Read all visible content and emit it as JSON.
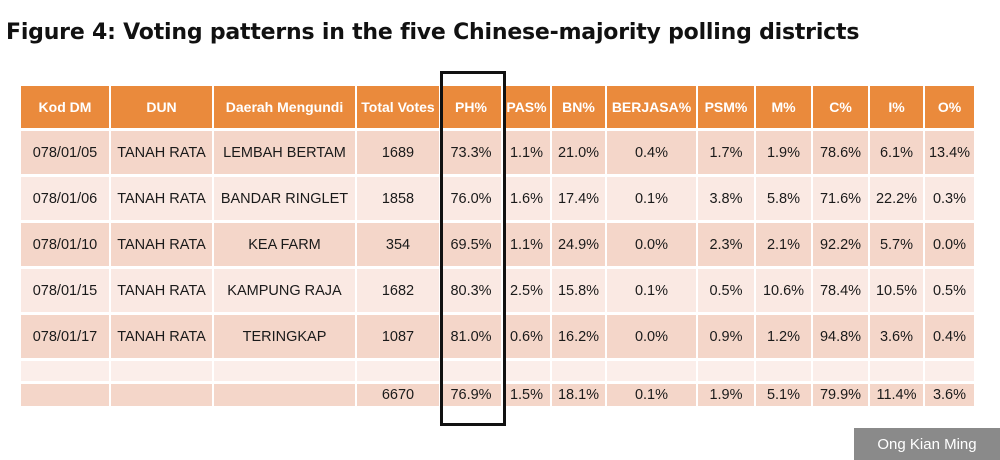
{
  "title": "Figure 4: Voting patterns in the five Chinese-majority polling districts",
  "credit": "Ong Kian Ming",
  "colors": {
    "header_bg": "#ea8a3c",
    "row_dark": "#f4d6c9",
    "row_light": "#fae9e3",
    "highlight_border": "#111111"
  },
  "table": {
    "headers": [
      "Kod DM",
      "DUN",
      "Daerah Mengundi",
      "Total Votes",
      "PH%",
      "PAS%",
      "BN%",
      "BERJASA%",
      "PSM%",
      "M%",
      "C%",
      "I%",
      "O%"
    ],
    "highlighted_column": "PH%",
    "rows": [
      [
        "078/01/05",
        "TANAH RATA",
        "LEMBAH BERTAM",
        "1689",
        "73.3%",
        "1.1%",
        "21.0%",
        "0.4%",
        "1.7%",
        "1.9%",
        "78.6%",
        "6.1%",
        "13.4%"
      ],
      [
        "078/01/06",
        "TANAH RATA",
        "BANDAR RINGLET",
        "1858",
        "76.0%",
        "1.6%",
        "17.4%",
        "0.1%",
        "3.8%",
        "5.8%",
        "71.6%",
        "22.2%",
        "0.3%"
      ],
      [
        "078/01/10",
        "TANAH RATA",
        "KEA FARM",
        "354",
        "69.5%",
        "1.1%",
        "24.9%",
        "0.0%",
        "2.3%",
        "2.1%",
        "92.2%",
        "5.7%",
        "0.0%"
      ],
      [
        "078/01/15",
        "TANAH RATA",
        "KAMPUNG RAJA",
        "1682",
        "80.3%",
        "2.5%",
        "15.8%",
        "0.1%",
        "0.5%",
        "10.6%",
        "78.4%",
        "10.5%",
        "0.5%"
      ],
      [
        "078/01/17",
        "TANAH RATA",
        "TERINGKAP",
        "1087",
        "81.0%",
        "0.6%",
        "16.2%",
        "0.0%",
        "0.9%",
        "1.2%",
        "94.8%",
        "3.6%",
        "0.4%"
      ]
    ],
    "total": [
      "",
      "",
      "",
      "6670",
      "76.9%",
      "1.5%",
      "18.1%",
      "0.1%",
      "1.9%",
      "5.1%",
      "79.9%",
      "11.4%",
      "3.6%"
    ]
  }
}
